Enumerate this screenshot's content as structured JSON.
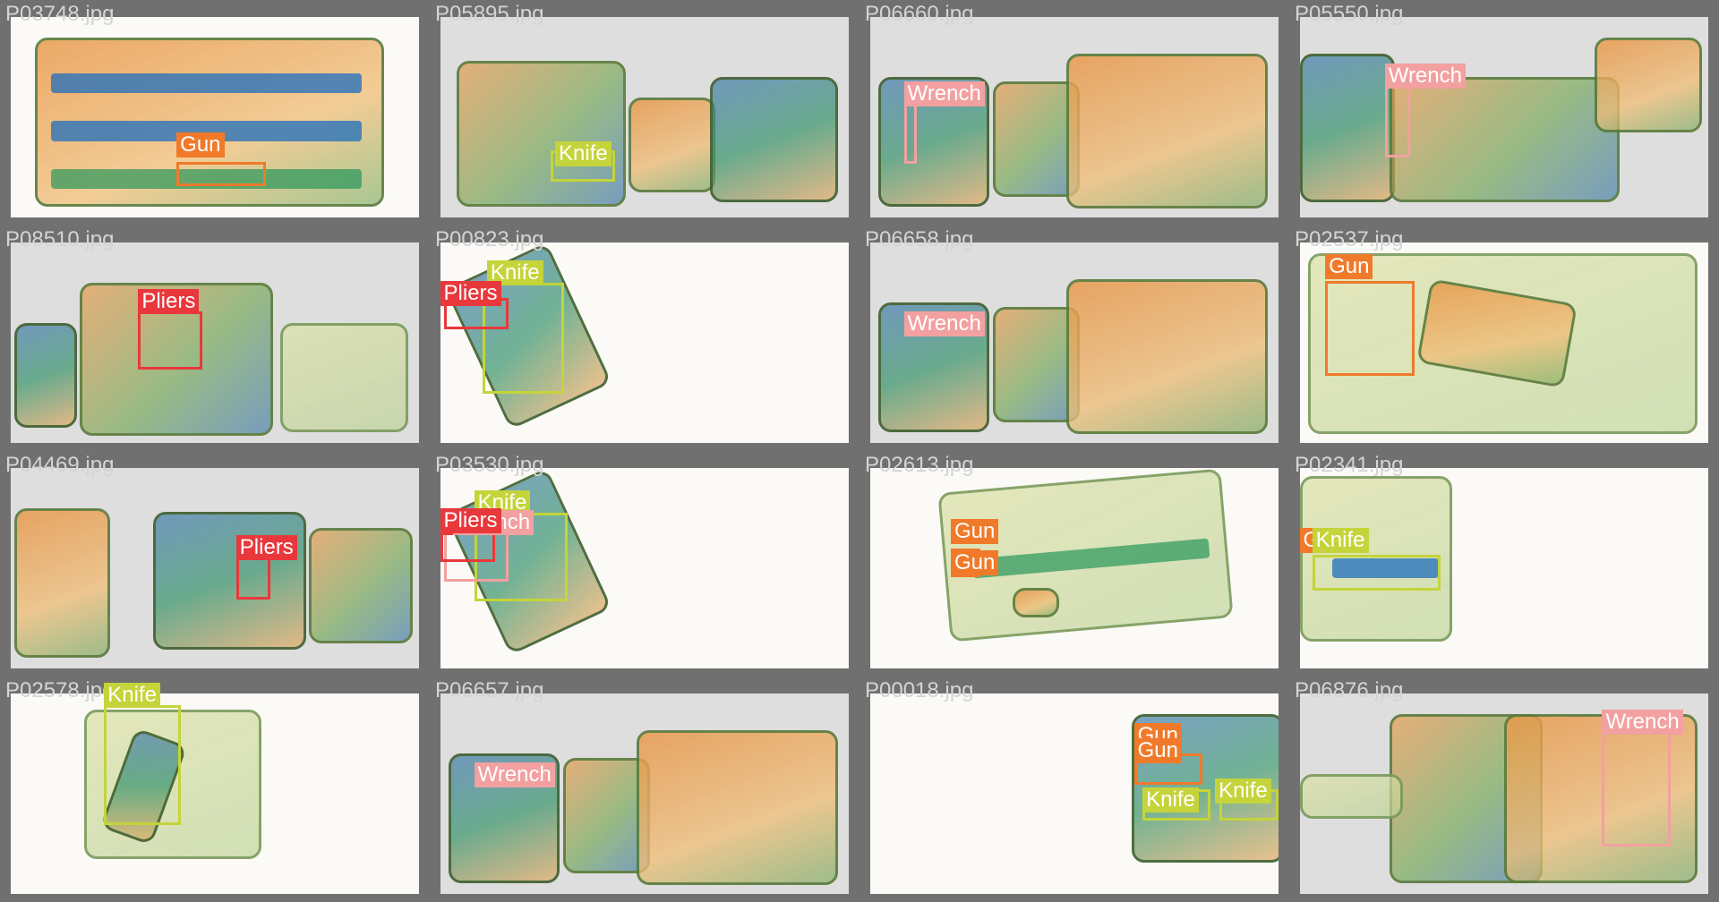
{
  "colors": {
    "Gun": "#f07a2a",
    "Knife": "#c4d43a",
    "Wrench": "#f2a0a0",
    "Pliers": "#e8383c"
  },
  "tiles": [
    {
      "filename": "P03748.jpg",
      "labels": [
        "Gun"
      ]
    },
    {
      "filename": "P05895.jpg",
      "labels": [
        "Knife"
      ]
    },
    {
      "filename": "P06660.jpg",
      "labels": [
        "Wrench"
      ]
    },
    {
      "filename": "P05550.jpg",
      "labels": [
        "Wrench"
      ]
    },
    {
      "filename": "P08510.jpg",
      "labels": [
        "Pliers"
      ]
    },
    {
      "filename": "P00823.jpg",
      "labels": [
        "Knife",
        "Pliers"
      ]
    },
    {
      "filename": "P06658.jpg",
      "labels": [
        "Wrench"
      ]
    },
    {
      "filename": "P02537.jpg",
      "labels": [
        "Gun"
      ]
    },
    {
      "filename": "P04469.jpg",
      "labels": [
        "Pliers"
      ]
    },
    {
      "filename": "P03530.jpg",
      "labels": [
        "Knife",
        "Wrench",
        "Pliers"
      ]
    },
    {
      "filename": "P02613.jpg",
      "labels": [
        "Gun",
        "Gun"
      ]
    },
    {
      "filename": "P02341.jpg",
      "labels": [
        "G",
        "Knife"
      ]
    },
    {
      "filename": "P02578.jpg",
      "labels": [
        "Knife"
      ]
    },
    {
      "filename": "P06657.jpg",
      "labels": [
        "Wrench"
      ]
    },
    {
      "filename": "P00018.jpg",
      "labels": [
        "Gun",
        "Gun",
        "Knife",
        "Knife"
      ]
    },
    {
      "filename": "P06876.jpg",
      "labels": [
        "Wrench"
      ]
    }
  ]
}
